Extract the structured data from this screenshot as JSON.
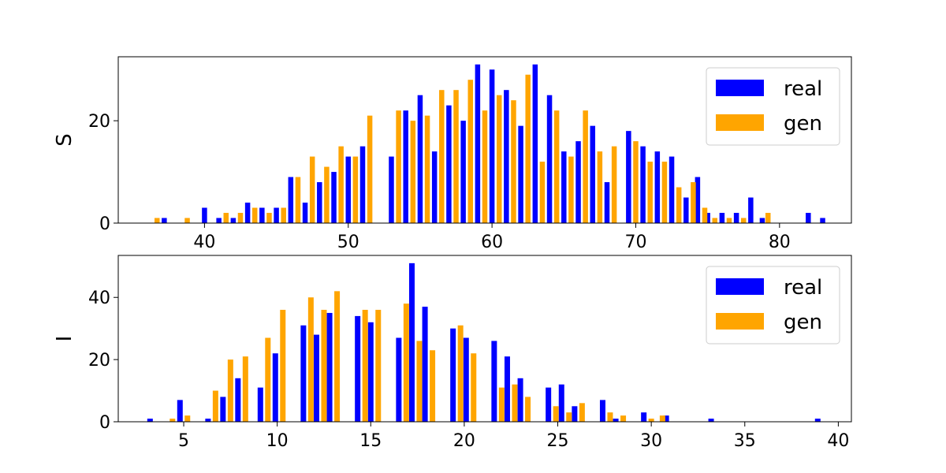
{
  "chart_data": [
    {
      "type": "bar",
      "ylabel": "S",
      "xlim": [
        34,
        85
      ],
      "ylim": [
        0,
        32.5
      ],
      "xticks": [
        40,
        50,
        60,
        70,
        80
      ],
      "yticks": [
        0,
        20
      ],
      "xtick_labels": [
        "40",
        "50",
        "60",
        "70",
        "80"
      ],
      "ytick_labels": [
        "0",
        "20"
      ],
      "grid": false,
      "legend_position": "top-right",
      "series": [
        {
          "name": "real",
          "color": "#0000ff",
          "points": [
            [
              37.2,
              1
            ],
            [
              40,
              3
            ],
            [
              41,
              1
            ],
            [
              42,
              1
            ],
            [
              43,
              4
            ],
            [
              44,
              3
            ],
            [
              45,
              3
            ],
            [
              46,
              9
            ],
            [
              47,
              4
            ],
            [
              48,
              8
            ],
            [
              49,
              10
            ],
            [
              50,
              13
            ],
            [
              51,
              15
            ],
            [
              53,
              13
            ],
            [
              54,
              22
            ],
            [
              55,
              25
            ],
            [
              56,
              14
            ],
            [
              57,
              23
            ],
            [
              58,
              20
            ],
            [
              59,
              31
            ],
            [
              60,
              30
            ],
            [
              61,
              26
            ],
            [
              62,
              19
            ],
            [
              63,
              31
            ],
            [
              64,
              25
            ],
            [
              65,
              14
            ],
            [
              66,
              16
            ],
            [
              67,
              19
            ],
            [
              68,
              8
            ],
            [
              69.5,
              18
            ],
            [
              70.5,
              15
            ],
            [
              71.5,
              14
            ],
            [
              72.5,
              13
            ],
            [
              73.5,
              5
            ],
            [
              74.3,
              9
            ],
            [
              75,
              2
            ],
            [
              76,
              2
            ],
            [
              77,
              2
            ],
            [
              78,
              5
            ],
            [
              78.8,
              1
            ],
            [
              82,
              2
            ],
            [
              83,
              1
            ]
          ],
          "bar_offset": 0.2
        },
        {
          "name": "gen",
          "color": "#ffa500",
          "points": [
            [
              36.7,
              1
            ],
            [
              38.8,
              1
            ],
            [
              41.5,
              2
            ],
            [
              42.5,
              2
            ],
            [
              43.5,
              3
            ],
            [
              44.5,
              2
            ],
            [
              45.5,
              3
            ],
            [
              46.5,
              9
            ],
            [
              47.5,
              13
            ],
            [
              48.5,
              11
            ],
            [
              49.5,
              15
            ],
            [
              50.5,
              13
            ],
            [
              51.5,
              21
            ],
            [
              53.5,
              22
            ],
            [
              54.5,
              20
            ],
            [
              55.5,
              21
            ],
            [
              56.5,
              26
            ],
            [
              57.5,
              26
            ],
            [
              58.5,
              28
            ],
            [
              59.5,
              22
            ],
            [
              60.5,
              25
            ],
            [
              61.5,
              24
            ],
            [
              62.5,
              29
            ],
            [
              63.5,
              12
            ],
            [
              64.5,
              22
            ],
            [
              65.5,
              13
            ],
            [
              66.5,
              22
            ],
            [
              67.5,
              14
            ],
            [
              68.5,
              15
            ],
            [
              70,
              16
            ],
            [
              71,
              12
            ],
            [
              72,
              12
            ],
            [
              73,
              7
            ],
            [
              74,
              8
            ],
            [
              74.8,
              3
            ],
            [
              75.5,
              1
            ],
            [
              76.5,
              1
            ],
            [
              77.5,
              1
            ],
            [
              79.2,
              2
            ]
          ],
          "bar_offset": -0.2
        }
      ]
    },
    {
      "type": "bar",
      "ylabel": "I",
      "xlim": [
        1.5,
        40.7
      ],
      "ylim": [
        0,
        53.5
      ],
      "xticks": [
        5,
        10,
        15,
        20,
        25,
        30,
        35,
        40
      ],
      "yticks": [
        0,
        20,
        40
      ],
      "xtick_labels": [
        "5",
        "10",
        "15",
        "20",
        "25",
        "30",
        "35",
        "40"
      ],
      "ytick_labels": [
        "0",
        "20",
        "40"
      ],
      "grid": false,
      "legend_position": "top-right",
      "series": [
        {
          "name": "real",
          "color": "#0000ff",
          "points": [
            [
              3.2,
              1
            ],
            [
              4.8,
              7
            ],
            [
              6.3,
              1
            ],
            [
              7.1,
              8
            ],
            [
              7.9,
              14
            ],
            [
              9.1,
              11
            ],
            [
              9.9,
              22
            ],
            [
              11.4,
              31
            ],
            [
              12.1,
              28
            ],
            [
              12.8,
              35
            ],
            [
              14.3,
              34
            ],
            [
              15,
              32
            ],
            [
              16.5,
              27
            ],
            [
              17.2,
              51
            ],
            [
              17.9,
              37
            ],
            [
              19.4,
              30
            ],
            [
              20.1,
              27
            ],
            [
              21.6,
              26
            ],
            [
              22.3,
              21
            ],
            [
              23,
              14
            ],
            [
              24.5,
              11
            ],
            [
              25.2,
              12
            ],
            [
              25.9,
              5
            ],
            [
              27.4,
              7
            ],
            [
              28.1,
              1
            ],
            [
              29.6,
              3
            ],
            [
              30.8,
              2
            ],
            [
              33.2,
              1
            ],
            [
              38.9,
              1
            ]
          ],
          "bar_offset": -0.15
        },
        {
          "name": "gen",
          "color": "#ffa500",
          "points": [
            [
              4.4,
              1
            ],
            [
              5.2,
              2
            ],
            [
              6.7,
              10
            ],
            [
              7.5,
              20
            ],
            [
              8.3,
              21
            ],
            [
              9.5,
              27
            ],
            [
              10.3,
              36
            ],
            [
              11.8,
              40
            ],
            [
              12.5,
              36
            ],
            [
              13.2,
              42
            ],
            [
              14.7,
              36
            ],
            [
              15.4,
              36
            ],
            [
              16.9,
              38
            ],
            [
              17.6,
              26
            ],
            [
              18.3,
              23
            ],
            [
              19.8,
              31
            ],
            [
              20.5,
              22
            ],
            [
              22,
              11
            ],
            [
              22.7,
              12
            ],
            [
              23.4,
              8
            ],
            [
              24.9,
              5
            ],
            [
              25.6,
              3
            ],
            [
              26.3,
              6
            ],
            [
              27.8,
              3
            ],
            [
              28.5,
              2
            ],
            [
              30,
              1
            ],
            [
              30.6,
              2
            ]
          ],
          "bar_offset": 0.15
        }
      ]
    }
  ]
}
